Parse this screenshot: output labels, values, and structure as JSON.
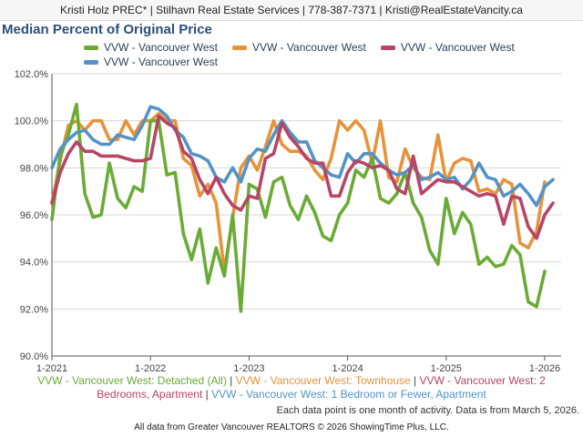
{
  "header": {
    "text": "Kristi Holz PREC* | Stilhavn Real Estate Services | 778-387-7371 | Kristi@RealEstateVancity.ca"
  },
  "colors": {
    "green": "#6aab35",
    "orange": "#e8923a",
    "red": "#b74566",
    "blue": "#5393c5",
    "grid": "#d7d7d7",
    "axis": "#555555"
  },
  "chart_data": {
    "type": "line",
    "title": "Median Percent of Original Price",
    "xlabel": "",
    "ylabel": "",
    "ylim": [
      90.0,
      102.0
    ],
    "yticks": [
      90.0,
      92.0,
      94.0,
      96.0,
      98.0,
      100.0,
      102.0
    ],
    "ytick_labels": [
      "90.0%",
      "92.0%",
      "94.0%",
      "96.0%",
      "98.0%",
      "100.0%",
      "102.0%"
    ],
    "x_start": "1-2021",
    "x_tick_index": [
      0,
      12,
      24,
      36,
      48,
      60
    ],
    "x_tick_labels": [
      "1-2021",
      "1-2022",
      "1-2023",
      "1-2024",
      "1-2025",
      "1-2026"
    ],
    "grid": true,
    "series": [
      {
        "name": "VVW - Vancouver West: Detached (All)",
        "legend": "VVW - Vancouver West",
        "color_key": "green",
        "values": [
          95.8,
          98.5,
          99.4,
          100.7,
          96.9,
          95.9,
          96.0,
          98.2,
          96.7,
          96.3,
          97.2,
          97.0,
          100.0,
          100.0,
          97.7,
          97.8,
          95.2,
          94.1,
          95.4,
          93.1,
          94.6,
          93.4,
          96.0,
          91.9,
          97.3,
          97.1,
          95.9,
          97.4,
          97.6,
          96.4,
          95.8,
          96.8,
          96.1,
          95.1,
          94.9,
          96.0,
          96.5,
          97.9,
          97.6,
          98.4,
          96.7,
          96.5,
          96.9,
          97.8,
          96.5,
          95.9,
          94.5,
          93.9,
          96.7,
          95.2,
          96.1,
          95.6,
          93.9,
          94.2,
          93.8,
          93.9,
          94.7,
          94.3,
          92.3,
          92.1,
          93.6
        ]
      },
      {
        "name": "VVW - Vancouver West: Townhouse",
        "legend": "VVW - Vancouver West",
        "color_key": "orange",
        "values": [
          96.5,
          98.3,
          99.8,
          100.0,
          99.6,
          100.0,
          100.0,
          99.2,
          99.2,
          100.0,
          99.4,
          100.0,
          100.0,
          100.3,
          100.0,
          100.0,
          98.4,
          98.1,
          96.8,
          97.3,
          96.5,
          93.6,
          95.9,
          98.0,
          98.5,
          97.9,
          98.9,
          100.0,
          99.0,
          98.7,
          98.7,
          98.5,
          97.9,
          97.5,
          98.4,
          100.0,
          99.6,
          100.0,
          99.6,
          98.2,
          100.0,
          97.6,
          97.4,
          98.8,
          98.0,
          97.6,
          97.5,
          99.4,
          97.4,
          98.2,
          98.4,
          98.3,
          97.0,
          97.1,
          96.9,
          97.5,
          97.3,
          94.8,
          94.6,
          95.3,
          97.4
        ]
      },
      {
        "name": "VVW - Vancouver West: 2 Bedrooms, Apartment",
        "legend": "VVW - Vancouver West",
        "color_key": "red",
        "values": [
          96.5,
          97.8,
          98.6,
          99.1,
          98.7,
          98.7,
          98.5,
          98.5,
          98.5,
          98.4,
          98.3,
          98.3,
          98.4,
          100.2,
          99.9,
          99.7,
          98.7,
          98.4,
          97.5,
          96.9,
          97.6,
          96.9,
          96.4,
          96.2,
          96.8,
          96.7,
          98.4,
          98.6,
          99.9,
          99.3,
          98.9,
          98.4,
          98.2,
          98.2,
          96.8,
          96.8,
          97.8,
          98.3,
          98.2,
          98.0,
          98.1,
          97.9,
          97.1,
          96.9,
          98.5,
          96.9,
          97.2,
          97.5,
          97.4,
          97.4,
          97.2,
          97.0,
          96.8,
          96.9,
          96.8,
          95.6,
          96.8,
          96.7,
          95.5,
          95.0,
          96.0,
          96.5
        ]
      },
      {
        "name": "VVW - Vancouver West: 1 Bedroom or Fewer, Apartment",
        "legend": "VVW - Vancouver West",
        "color_key": "blue",
        "values": [
          98.0,
          98.8,
          99.2,
          99.5,
          99.6,
          99.2,
          99.0,
          99.0,
          99.4,
          99.3,
          99.2,
          99.8,
          100.6,
          100.5,
          100.2,
          99.6,
          99.3,
          98.6,
          98.5,
          98.3,
          97.6,
          97.4,
          98.0,
          97.4,
          98.4,
          98.8,
          98.7,
          99.4,
          100.0,
          99.5,
          99.1,
          99.1,
          98.3,
          98.0,
          97.7,
          97.6,
          98.6,
          98.2,
          98.6,
          98.6,
          98.2,
          97.9,
          97.7,
          97.8,
          98.1,
          97.5,
          97.6,
          97.8,
          97.5,
          97.6,
          97.1,
          97.5,
          98.2,
          97.6,
          97.5,
          96.8,
          97.0,
          97.3,
          96.9,
          96.4,
          97.2,
          97.5
        ]
      }
    ]
  },
  "caption": {
    "line1_seg1": "VVW - Vancouver West: Detached (All)",
    "line1_seg2": "VVW - Vancouver West: Townhouse",
    "line1_seg3": "VVW - Vancouver West: 2",
    "line2_seg3": "Bedrooms, Apartment",
    "line2_seg4": "VVW - Vancouver West: 1 Bedroom or Fewer, Apartment",
    "separator": " | "
  },
  "footnote": {
    "activity": "Each data point is one month of activity. Data is from March 5, 2026.",
    "source": "All data from Greater Vancouver REALTORS © 2026 ShowingTime Plus, LLC."
  }
}
